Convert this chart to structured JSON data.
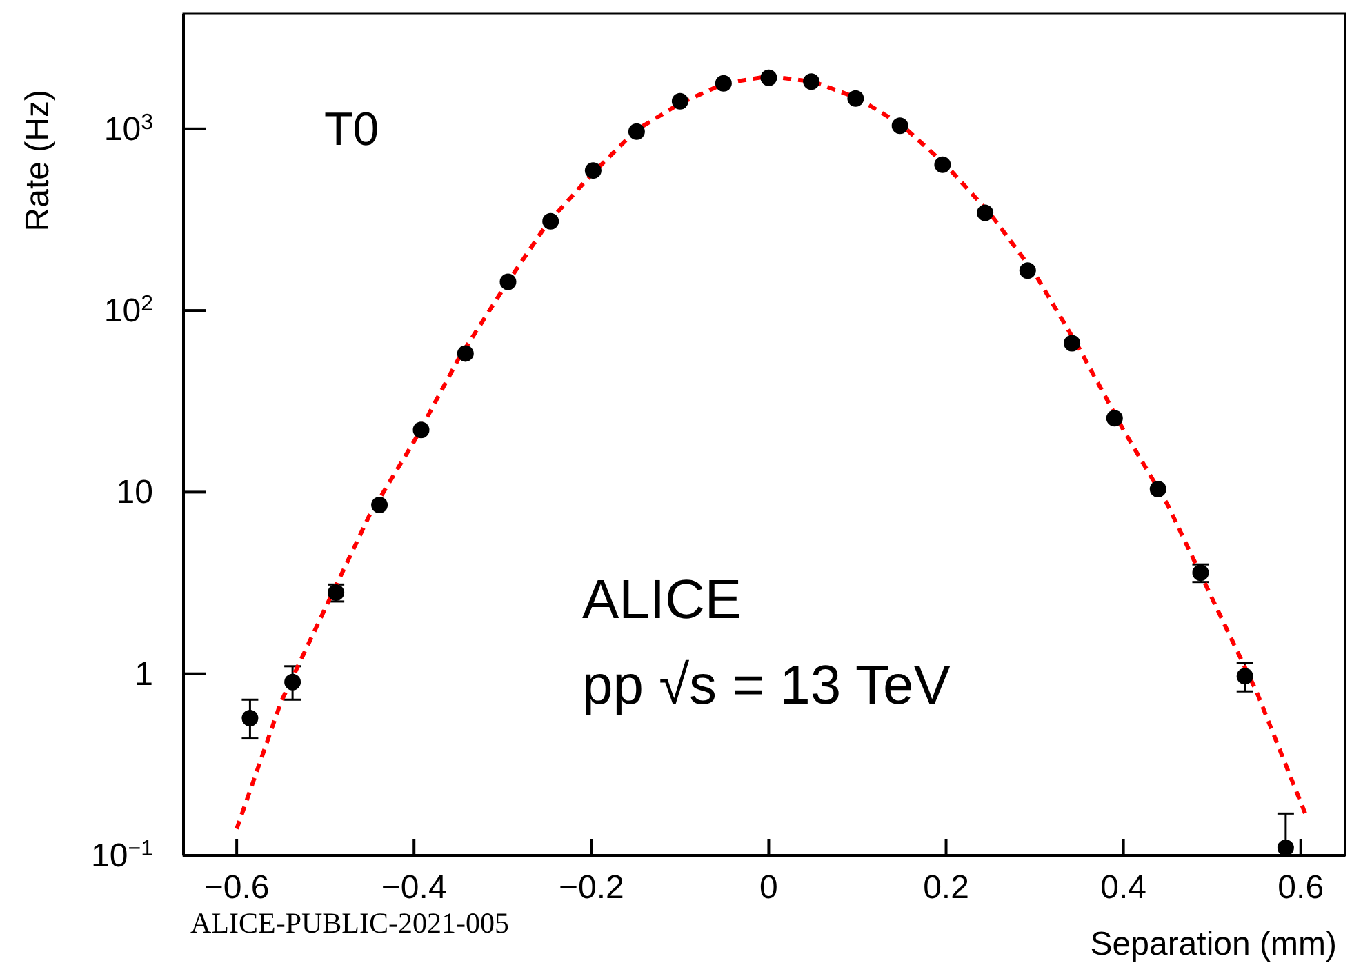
{
  "chart_data": {
    "type": "scatter",
    "xlabel": "Separation (mm)",
    "ylabel": "Rate (Hz)",
    "log": "y",
    "grid": false,
    "legend": false,
    "xlim": [
      -0.66,
      0.65
    ],
    "xticks": [
      {
        "value": -0.6,
        "label": "−0.6"
      },
      {
        "value": -0.4,
        "label": "−0.4"
      },
      {
        "value": -0.2,
        "label": "−0.2"
      },
      0,
      0.2,
      0.4,
      0.6
    ],
    "ylim": [
      0.1,
      4300
    ],
    "yticks": [
      {
        "value": 0.1,
        "label": "10$^{−1}$"
      },
      1,
      10,
      {
        "value": 100,
        "label": "10$^{2}$"
      },
      {
        "value": 1000,
        "label": "10$^{3}$"
      }
    ],
    "annotations": [
      "T0",
      "ALICE",
      "pp √s = 13 TeV",
      "ALICE-PUBLIC-2021-005"
    ],
    "series": [
      {
        "color": "#000000",
        "marker": "circle",
        "x": [
          -0.585,
          -0.537,
          -0.488,
          -0.439,
          -0.392,
          -0.342,
          -0.294,
          -0.246,
          -0.198,
          -0.149,
          -0.1,
          -0.051,
          0,
          0.048,
          0.098,
          0.148,
          0.196,
          0.244,
          0.292,
          0.342,
          0.39,
          0.439,
          0.487,
          0.537,
          0.583
        ],
        "values": [
          0.57,
          0.9,
          2.8,
          8.5,
          22,
          58,
          144,
          310,
          590,
          966,
          1420,
          1780,
          1910,
          1820,
          1470,
          1040,
          635,
          345,
          166,
          66,
          25.5,
          10.4,
          3.6,
          0.97,
          0.11
        ],
        "errors": [
          [
            0.44,
            0.72
          ],
          [
            0.72,
            1.1
          ],
          [
            2.5,
            3.1
          ],
          null,
          null,
          null,
          null,
          null,
          null,
          null,
          null,
          null,
          null,
          null,
          null,
          null,
          null,
          null,
          null,
          null,
          null,
          null,
          [
            3.2,
            4.0
          ],
          [
            0.8,
            1.15
          ],
          [
            0.1,
            0.17
          ]
        ]
      },
      {
        "type": "line",
        "color": "#ff0000",
        "marker": "none",
        "line_style": "dashed",
        "x": [
          -0.6,
          -0.55,
          -0.5,
          -0.45,
          -0.4,
          -0.35,
          -0.3,
          -0.25,
          -0.2,
          -0.15,
          -0.1,
          -0.05,
          0,
          0.05,
          0.1,
          0.15,
          0.2,
          0.25,
          0.3,
          0.35,
          0.4,
          0.45,
          0.5,
          0.55,
          0.605
        ],
        "values": [
          0.14,
          0.7,
          2.3,
          7.5,
          19,
          54,
          130,
          300,
          560,
          980,
          1380,
          1780,
          1950,
          1820,
          1480,
          1050,
          630,
          340,
          160,
          62,
          22,
          8.5,
          2.6,
          0.8,
          0.17
        ]
      }
    ]
  }
}
